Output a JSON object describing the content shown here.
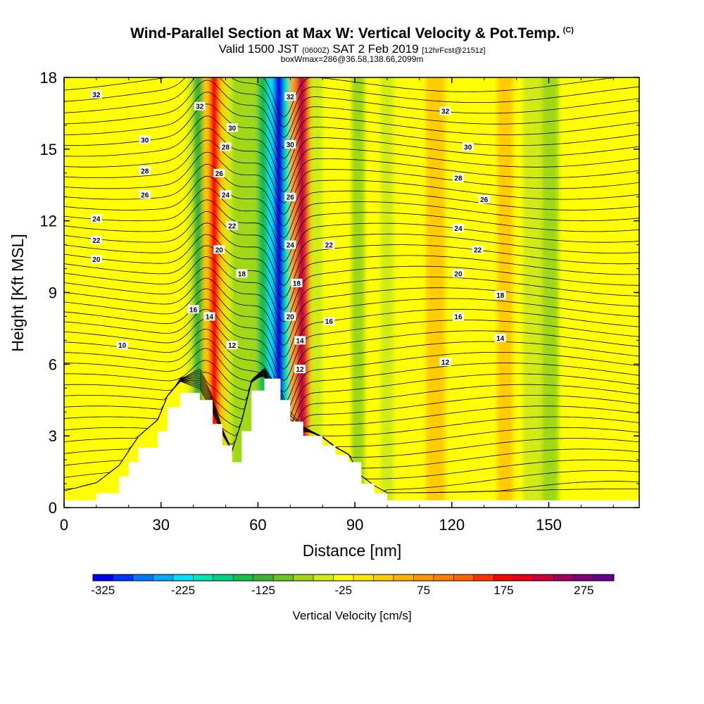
{
  "header": {
    "title_main": "Wind-Parallel Section at Max W: Vertical Velocity & Pot.Temp.",
    "title_mark": "(C)",
    "valid_prefix": "Valid 1500 JST",
    "valid_utc": "(0600Z)",
    "valid_date": "SAT 2 Feb 2019",
    "valid_fcst": "[12hrFcst@2151z]",
    "box_info": "boxWmax=286@36.58,138.66,2099m"
  },
  "chart_data": {
    "type": "heatmap",
    "xlabel": "Distance [nm]",
    "ylabel": "Height [Kft MSL]",
    "xlim": [
      0,
      178
    ],
    "ylim": [
      0,
      18
    ],
    "x_ticks": [
      "0",
      "30",
      "60",
      "90",
      "120",
      "150"
    ],
    "y_ticks": [
      "0",
      "3",
      "6",
      "9",
      "12",
      "15",
      "18"
    ],
    "background_vv_cms": 5,
    "vv_bands": [
      {
        "x": 10,
        "w": 6,
        "vv": -15
      },
      {
        "x": 24,
        "w": 4,
        "vv": -20
      },
      {
        "x": 38,
        "w": 2,
        "vv": -45
      },
      {
        "x": 40,
        "w": 3,
        "vv": -110
      },
      {
        "x": 43,
        "w": 2,
        "vv": 30
      },
      {
        "x": 45,
        "w": 3,
        "vv": 175
      },
      {
        "x": 48,
        "w": 2,
        "vv": 40
      },
      {
        "x": 50,
        "w": 2,
        "vv": -30
      },
      {
        "x": 52,
        "w": 8,
        "vv": -75
      },
      {
        "x": 60,
        "w": 3,
        "vv": -150
      },
      {
        "x": 63,
        "w": 2,
        "vv": -225
      },
      {
        "x": 65,
        "w": 3,
        "vv": -325
      },
      {
        "x": 68,
        "w": 2,
        "vv": -190
      },
      {
        "x": 70,
        "w": 2,
        "vv": 75
      },
      {
        "x": 72,
        "w": 3,
        "vv": 225
      },
      {
        "x": 75,
        "w": 1,
        "vv": 125
      },
      {
        "x": 76,
        "w": 4,
        "vv": -30
      },
      {
        "x": 80,
        "w": 4,
        "vv": -20
      },
      {
        "x": 89,
        "w": 4,
        "vv": -60
      },
      {
        "x": 98,
        "w": 4,
        "vv": -40
      },
      {
        "x": 112,
        "w": 6,
        "vv": 40
      },
      {
        "x": 134,
        "w": 5,
        "vv": 35
      },
      {
        "x": 142,
        "w": 6,
        "vv": -40
      },
      {
        "x": 148,
        "w": 5,
        "vv": -60
      },
      {
        "x": 165,
        "w": 7,
        "vv": -20
      }
    ],
    "theta_contours": [
      "10",
      "12",
      "14",
      "16",
      "18",
      "20",
      "22",
      "24",
      "26",
      "28",
      "30",
      "32"
    ],
    "terrain_kft": [
      [
        0,
        0.3
      ],
      [
        10,
        0.6
      ],
      [
        17,
        1.3
      ],
      [
        20,
        1.9
      ],
      [
        23,
        2.5
      ],
      [
        29,
        3.2
      ],
      [
        32,
        4.2
      ],
      [
        36,
        4.8
      ],
      [
        42,
        4.5
      ],
      [
        46,
        3.5
      ],
      [
        49,
        2.6
      ],
      [
        52,
        1.9
      ],
      [
        55,
        3.2
      ],
      [
        58,
        4.9
      ],
      [
        62,
        5.4
      ],
      [
        67,
        4.5
      ],
      [
        70,
        3.6
      ],
      [
        74,
        3.0
      ],
      [
        80,
        2.6
      ],
      [
        84,
        2.2
      ],
      [
        88,
        1.9
      ],
      [
        92,
        1.0
      ],
      [
        96,
        0.6
      ],
      [
        100,
        0.3
      ],
      [
        178,
        0.3
      ]
    ],
    "colorbar": {
      "label": "Vertical Velocity [cm/s]",
      "ticks": [
        "-325",
        "-225",
        "-125",
        "-25",
        "75",
        "175",
        "275"
      ],
      "colors": [
        "#0000e6",
        "#0033ff",
        "#0077ff",
        "#00aaff",
        "#00e0ff",
        "#00e6b4",
        "#00d280",
        "#19be4b",
        "#3cb431",
        "#6ec41e",
        "#a0d719",
        "#d2eb19",
        "#ffff00",
        "#ffe600",
        "#ffcc00",
        "#ffb400",
        "#ff9600",
        "#ff7d00",
        "#ff6400",
        "#ff3200",
        "#ff0000",
        "#e6001e",
        "#c8003c",
        "#a0005a",
        "#800078",
        "#64008c"
      ]
    }
  }
}
